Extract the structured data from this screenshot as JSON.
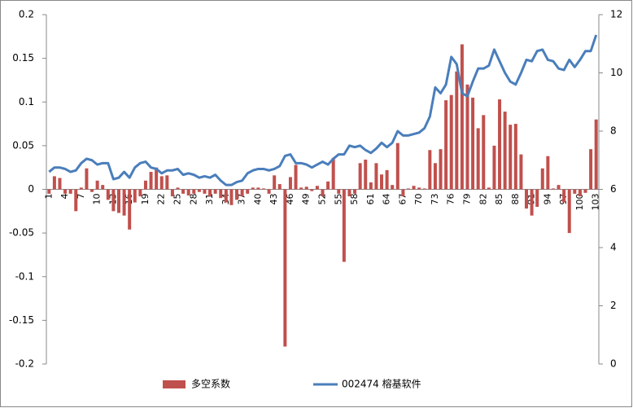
{
  "chart_data": {
    "type": "bar-line",
    "categories": [
      1,
      null,
      null,
      4,
      null,
      null,
      7,
      null,
      null,
      10,
      null,
      null,
      13,
      null,
      null,
      16,
      null,
      null,
      19,
      null,
      null,
      22,
      null,
      null,
      25,
      null,
      null,
      28,
      null,
      null,
      31,
      null,
      null,
      34,
      null,
      null,
      37,
      null,
      null,
      40,
      null,
      null,
      43,
      null,
      null,
      46,
      null,
      null,
      49,
      null,
      null,
      52,
      null,
      null,
      55,
      null,
      null,
      58,
      null,
      null,
      61,
      null,
      null,
      64,
      null,
      null,
      67,
      null,
      null,
      70,
      null,
      null,
      73,
      null,
      null,
      76,
      null,
      null,
      79,
      null,
      null,
      82,
      null,
      null,
      85,
      null,
      null,
      88,
      null,
      null,
      91,
      null,
      null,
      94,
      null,
      null,
      97,
      null,
      null,
      100,
      null,
      null,
      103
    ],
    "series": [
      {
        "name": "多空系数",
        "color": "#c0504d",
        "kind": "bar",
        "values": [
          -0.005,
          0.015,
          0.013,
          -0.005,
          -0.005,
          -0.025,
          0.002,
          0.024,
          -0.003,
          0.01,
          0.005,
          -0.012,
          -0.025,
          -0.027,
          -0.03,
          -0.046,
          -0.015,
          -0.008,
          0.01,
          0.02,
          0.025,
          0.015,
          0.016,
          -0.008,
          0.002,
          -0.005,
          -0.007,
          -0.005,
          -0.003,
          -0.005,
          -0.008,
          -0.005,
          -0.01,
          -0.015,
          -0.018,
          -0.012,
          -0.008,
          -0.005,
          0.002,
          0.002,
          0.001,
          -0.005,
          0.016,
          0.006,
          -0.18,
          0.014,
          0.028,
          0.002,
          0.003,
          -0.002,
          0.004,
          -0.008,
          0.009,
          0.036,
          -0.005,
          -0.083,
          -0.008,
          -0.005,
          0.03,
          0.034,
          0.008,
          0.03,
          0.017,
          0.022,
          0.005,
          0.053,
          -0.008,
          0.001,
          0.004,
          0.002,
          0.001,
          0.045,
          0.03,
          0.046,
          0.102,
          0.108,
          0.135,
          0.166,
          0.12,
          0.105,
          0.07,
          0.085,
          0.002,
          0.05,
          0.103,
          0.089,
          0.074,
          0.075,
          0.04,
          -0.022,
          -0.03,
          -0.02,
          0.024,
          0.038,
          0.001,
          0.005,
          -0.015,
          -0.05,
          -0.005,
          -0.008,
          -0.004,
          0.046,
          0.08
        ]
      },
      {
        "name": "002474 榕基软件",
        "color": "#4a7ebb",
        "kind": "line",
        "axis": "y2",
        "values": [
          6.6,
          6.75,
          6.75,
          6.7,
          6.6,
          6.65,
          6.9,
          7.05,
          7.0,
          6.85,
          6.9,
          6.9,
          6.35,
          6.4,
          6.6,
          6.4,
          6.75,
          6.9,
          6.95,
          6.75,
          6.7,
          6.55,
          6.65,
          6.65,
          6.7,
          6.5,
          6.55,
          6.5,
          6.4,
          6.45,
          6.4,
          6.5,
          6.3,
          6.15,
          6.15,
          6.25,
          6.3,
          6.55,
          6.65,
          6.7,
          6.7,
          6.65,
          6.7,
          6.8,
          7.15,
          7.2,
          6.9,
          6.9,
          6.85,
          6.75,
          6.85,
          6.95,
          6.85,
          7.05,
          7.2,
          7.2,
          7.5,
          7.45,
          7.5,
          7.35,
          7.25,
          7.4,
          7.6,
          7.45,
          7.6,
          8.0,
          7.85,
          7.85,
          7.9,
          7.95,
          8.1,
          8.5,
          9.5,
          9.3,
          9.6,
          10.55,
          10.3,
          9.3,
          9.2,
          9.7,
          10.15,
          10.15,
          10.25,
          10.8,
          10.4,
          10.0,
          9.7,
          9.6,
          10.0,
          10.45,
          10.4,
          10.75,
          10.8,
          10.45,
          10.4,
          10.15,
          10.1,
          10.45,
          10.2,
          10.45,
          10.75,
          10.75,
          11.3
        ]
      }
    ],
    "ylim": [
      -0.2,
      0.2
    ],
    "yticks": [
      -0.2,
      -0.15,
      -0.1,
      -0.05,
      0,
      0.05,
      0.1,
      0.15,
      0.2
    ],
    "y2lim": [
      0,
      12
    ],
    "y2ticks": [
      0,
      2,
      4,
      6,
      8,
      10,
      12
    ],
    "grid": false,
    "legend": "bottom"
  }
}
